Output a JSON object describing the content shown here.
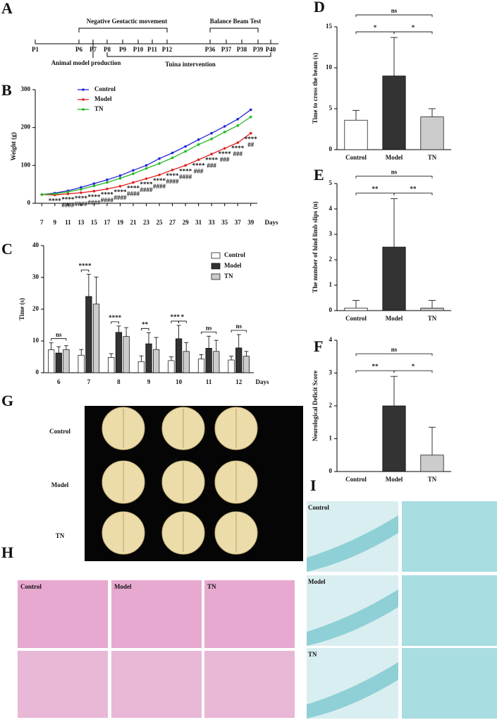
{
  "timeline": {
    "panel": "A",
    "ticks": [
      "P1",
      "P6",
      "P7",
      "P8",
      "P9",
      "P10",
      "P11",
      "P12",
      "P36",
      "P37",
      "P38",
      "P39",
      "P40"
    ],
    "above": [
      "Negative Geotactic movement",
      "Balance Beam Test"
    ],
    "below": [
      "Animal model production",
      "Tuina intervention"
    ]
  },
  "chart_data": [
    {
      "type": "line",
      "panel": "B",
      "xlabel": "Days",
      "ylabel": "Weight (g)",
      "x": [
        7,
        9,
        11,
        13,
        15,
        17,
        19,
        21,
        23,
        25,
        27,
        29,
        31,
        33,
        35,
        37,
        39
      ],
      "xlim": [
        6,
        40
      ],
      "xticks": [
        7,
        9,
        11,
        13,
        15,
        17,
        19,
        21,
        23,
        25,
        27,
        29,
        31,
        33,
        35,
        37,
        39
      ],
      "ylim": [
        0,
        300
      ],
      "yticks": [
        0,
        100,
        200,
        300
      ],
      "legend": "upper left",
      "series": [
        {
          "name": "Control",
          "color": "#2323d8",
          "values": [
            23,
            27,
            33,
            42,
            52,
            62,
            73,
            87,
            100,
            118,
            133,
            150,
            168,
            185,
            203,
            222,
            247
          ]
        },
        {
          "name": "Model",
          "color": "#e02020",
          "values": [
            23,
            22,
            25,
            28,
            32,
            38,
            45,
            55,
            65,
            75,
            88,
            100,
            115,
            130,
            145,
            160,
            185
          ]
        },
        {
          "name": "TN",
          "color": "#22b822",
          "values": [
            23,
            25,
            30,
            37,
            46,
            55,
            66,
            78,
            92,
            105,
            120,
            137,
            155,
            170,
            188,
            205,
            228
          ]
        }
      ],
      "significance": [
        {
          "color": "#5a5ae0",
          "labels": [
            null,
            "****",
            "****",
            "****",
            "****",
            "****",
            "****",
            "****",
            "****",
            "****",
            "****",
            "****",
            "****",
            "****",
            "****",
            "****",
            "****"
          ]
        },
        {
          "color": "#6ccf6c",
          "labels": [
            null,
            null,
            "####",
            "####",
            "####",
            "####",
            "####",
            "####",
            "####",
            "####",
            "####",
            "####",
            "###",
            "###",
            "###",
            "###",
            "##"
          ]
        }
      ]
    },
    {
      "type": "grouped-bar",
      "panel": "C",
      "xlabel": "Days",
      "ylabel": "Time (s)",
      "categories": [
        "6",
        "7",
        "8",
        "9",
        "10",
        "11",
        "12"
      ],
      "ylim": [
        0,
        40
      ],
      "yticks": [
        0,
        10,
        20,
        30,
        40
      ],
      "legend": "upper right",
      "series": [
        {
          "name": "Control",
          "color": "#ffffff",
          "values": [
            7.2,
            5.5,
            4.8,
            3.5,
            3.8,
            4.3,
            4.0
          ],
          "errors": [
            2.2,
            1.8,
            1.2,
            1.8,
            1.2,
            1.4,
            1.2
          ]
        },
        {
          "name": "Model",
          "color": "#333333",
          "values": [
            6.2,
            24,
            12.7,
            9.1,
            10.7,
            7.7,
            7.8
          ],
          "errors": [
            2,
            7,
            2,
            3.5,
            4.2,
            3.8,
            4.2
          ]
        },
        {
          "name": "TN",
          "color": "#cccccc",
          "values": [
            7.3,
            21.6,
            11.4,
            7.3,
            6.7,
            6.7,
            5.2
          ],
          "errors": [
            1.2,
            8.5,
            2.8,
            3.8,
            2.8,
            3.5,
            1.5
          ]
        }
      ],
      "brackets": [
        {
          "category": "6",
          "between": [
            "Control",
            "TN"
          ],
          "label": "ns"
        },
        {
          "category": "7",
          "between": [
            "Control",
            "Model"
          ],
          "label": "****"
        },
        {
          "category": "8",
          "between": [
            "Control",
            "Model"
          ],
          "label": "****"
        },
        {
          "category": "9",
          "between": [
            "Control",
            "Model"
          ],
          "label": "**"
        },
        {
          "category": "10",
          "between": [
            "Control",
            "Model"
          ],
          "label": "***"
        },
        {
          "category": "10",
          "between": [
            "Model",
            "TN"
          ],
          "label": "*"
        },
        {
          "category": "11",
          "between": [
            "Control",
            "TN"
          ],
          "label": "ns"
        },
        {
          "category": "12",
          "between": [
            "Control",
            "TN"
          ],
          "label": "ns"
        }
      ]
    },
    {
      "type": "bar",
      "panel": "D",
      "ylabel": "Time to cross the beam (s)",
      "categories": [
        "Control",
        "Model",
        "TN"
      ],
      "colors": [
        "#ffffff",
        "#333333",
        "#cccccc"
      ],
      "values": [
        3.6,
        9.0,
        4.0
      ],
      "errors": [
        1.2,
        4.7,
        1.0
      ],
      "ylim": [
        0,
        15
      ],
      "yticks": [
        0,
        5,
        10,
        15
      ],
      "brackets": [
        {
          "between": [
            "Control",
            "Model"
          ],
          "label": "*"
        },
        {
          "between": [
            "Model",
            "TN"
          ],
          "label": "*"
        },
        {
          "between": [
            "Control",
            "TN"
          ],
          "label": "ns"
        }
      ]
    },
    {
      "type": "bar",
      "panel": "E",
      "ylabel": "The number of hind limb slips (n)",
      "categories": [
        "Control",
        "Model",
        "TN"
      ],
      "colors": [
        "#ffffff",
        "#333333",
        "#cccccc"
      ],
      "values": [
        0.1,
        2.5,
        0.1
      ],
      "errors": [
        0.3,
        1.9,
        0.3
      ],
      "ylim": [
        0,
        5
      ],
      "yticks": [
        0,
        1,
        2,
        3,
        4,
        5
      ],
      "brackets": [
        {
          "between": [
            "Control",
            "Model"
          ],
          "label": "**"
        },
        {
          "between": [
            "Model",
            "TN"
          ],
          "label": "**"
        },
        {
          "between": [
            "Control",
            "TN"
          ],
          "label": "ns"
        }
      ]
    },
    {
      "type": "bar",
      "panel": "F",
      "ylabel": "Neurological Deficit Score",
      "categories": [
        "Control",
        "Model",
        "TN"
      ],
      "colors": [
        "#ffffff",
        "#333333",
        "#cccccc"
      ],
      "values": [
        0,
        2,
        0.5
      ],
      "errors": [
        0,
        0.9,
        0.85
      ],
      "ylim": [
        0,
        4
      ],
      "yticks": [
        0,
        1,
        2,
        3,
        4
      ],
      "brackets": [
        {
          "between": [
            "Control",
            "Model"
          ],
          "label": "**"
        },
        {
          "between": [
            "Model",
            "TN"
          ],
          "label": "*"
        },
        {
          "between": [
            "Control",
            "TN"
          ],
          "label": "ns"
        }
      ]
    }
  ],
  "photos": [
    {
      "panel": "G",
      "labels": [
        "Control",
        "Model",
        "TN"
      ]
    },
    {
      "panel": "H",
      "labels": [
        "Control",
        "Model",
        "TN"
      ]
    },
    {
      "panel": "I",
      "labels": [
        "Control",
        "Model",
        "TN"
      ]
    }
  ]
}
